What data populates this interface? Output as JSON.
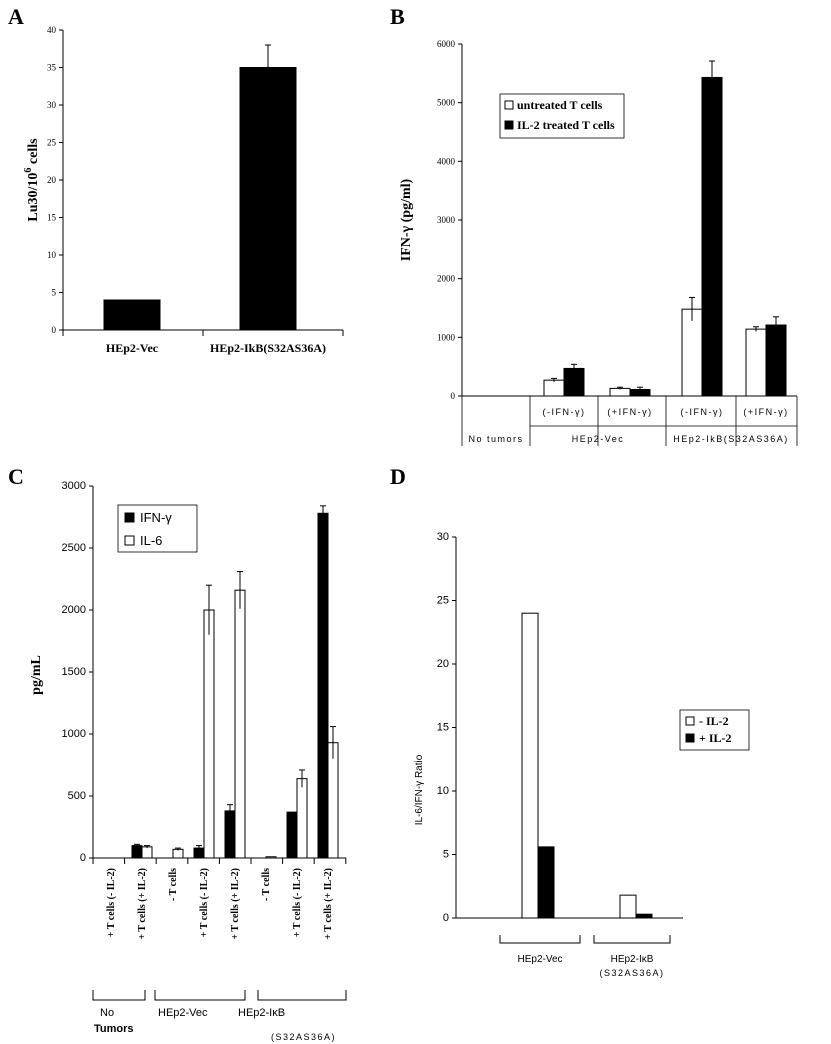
{
  "chart_data": [
    {
      "panel": "A",
      "type": "bar",
      "ylabel": "Lu30/10^6 cells",
      "ylabel_base": "Lu30/10",
      "ylabel_sup": "6",
      "ylabel_tail": " cells",
      "ylim": [
        0,
        40
      ],
      "yticks": [
        "0",
        "5",
        "10",
        "15",
        "20",
        "25",
        "30",
        "35",
        "40"
      ],
      "categories": [
        "HEp2-Vec",
        "HEp2-IkB(S32AS36A)"
      ],
      "values": [
        4,
        35
      ],
      "errors": [
        0,
        3
      ],
      "colors": [
        "#000000"
      ]
    },
    {
      "panel": "B",
      "type": "bar",
      "ylabel": "IFN-γ (pg/ml)",
      "ylim": [
        0,
        6000
      ],
      "yticks": [
        "0",
        "1000",
        "2000",
        "3000",
        "4000",
        "5000",
        "6000"
      ],
      "series": [
        {
          "name": "untreated T cells",
          "values": [
            0,
            270,
            130,
            1480,
            1140
          ],
          "errors": [
            0,
            30,
            20,
            200,
            40
          ],
          "color": "#ffffff"
        },
        {
          "name": "IL-2 treated T cells",
          "values": [
            0,
            470,
            110,
            5430,
            1210
          ],
          "errors": [
            0,
            70,
            40,
            280,
            140
          ],
          "color": "#000000"
        }
      ],
      "sublabels": [
        "(-IFN-γ)",
        "(+IFN-γ)",
        "(-IFN-γ)",
        "(+IFN-γ)"
      ],
      "groups": [
        "No tumors",
        "HEp2-Vec",
        "HEp2-IkB(S32AS36A)"
      ],
      "legend_position": "top-left"
    },
    {
      "panel": "C",
      "type": "bar",
      "ylabel": "pg/mL",
      "ylim": [
        0,
        3000
      ],
      "yticks": [
        "0",
        "500",
        "1000",
        "1500",
        "2000",
        "2500",
        "3000"
      ],
      "categories": [
        "+ T cells (- IL-2)",
        "+ T cells (+ IL-2)",
        "- T cells",
        "+ T cells (- IL-2)",
        "+ T cells (+ IL-2)",
        "- T cells",
        "+ T cells (- IL-2)",
        "+ T cells (+ IL-2)"
      ],
      "series": [
        {
          "name": "IFN-γ",
          "values": [
            0,
            100,
            0,
            80,
            380,
            0,
            370,
            2780
          ],
          "errors": [
            0,
            10,
            0,
            20,
            50,
            0,
            0,
            60
          ],
          "color": "#000000"
        },
        {
          "name": "IL-6",
          "values": [
            0,
            90,
            70,
            2000,
            2160,
            10,
            640,
            930
          ],
          "errors": [
            0,
            10,
            10,
            200,
            150,
            0,
            70,
            130
          ],
          "color": "#ffffff"
        }
      ],
      "groups": [
        "No",
        "HEp2-Vec",
        "HEp2-IκB"
      ],
      "group_extra": [
        "Tumors",
        "(S32AS36A)"
      ],
      "legend_position": "top-left"
    },
    {
      "panel": "D",
      "type": "bar",
      "ylabel": "IL-6/IFN-γ Ratio",
      "ylim": [
        0,
        30
      ],
      "yticks": [
        "0",
        "5",
        "10",
        "15",
        "20",
        "25",
        "30"
      ],
      "series": [
        {
          "name": "- IL-2",
          "values": [
            0,
            24,
            1.8
          ],
          "color": "#ffffff"
        },
        {
          "name": "+ IL-2",
          "values": [
            0,
            5.6,
            0.3
          ],
          "color": "#000000"
        }
      ],
      "groups": [
        "HEp2-Vec",
        "HEp2-IκB"
      ],
      "group_extra": [
        "(S32AS36A)"
      ],
      "legend_position": "right"
    }
  ]
}
